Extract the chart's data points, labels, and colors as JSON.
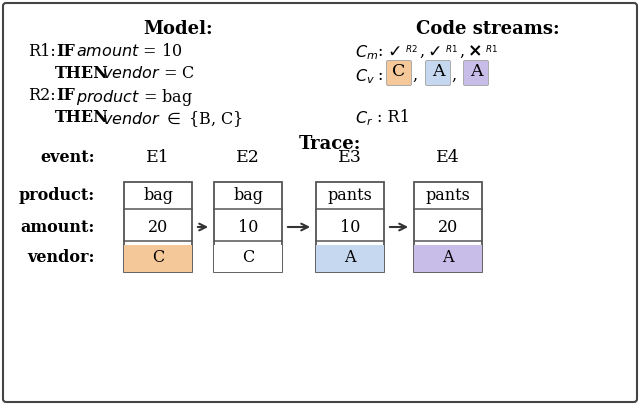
{
  "bg_color": "#ffffff",
  "border_color": "#444444",
  "title_model": "Model:",
  "title_code": "Code streams:",
  "title_trace": "Trace:",
  "event_labels": [
    "E1",
    "E2",
    "E3",
    "E4"
  ],
  "product_values": [
    "bag",
    "bag",
    "pants",
    "pants"
  ],
  "amount_values": [
    "20",
    "10",
    "10",
    "20"
  ],
  "vendor_values": [
    "C",
    "C",
    "A",
    "A"
  ],
  "vendor_colors": [
    "#f5c899",
    "#ffffff",
    "#c5d8f0",
    "#c8bce8"
  ],
  "box_color": "#ffffff",
  "box_edge": "#555555",
  "arrow_color": "#333333",
  "cv_colors": [
    "#f5c899",
    "#c5d8f0",
    "#c8bce8"
  ],
  "cv_values": [
    "C",
    "A",
    "A"
  ]
}
